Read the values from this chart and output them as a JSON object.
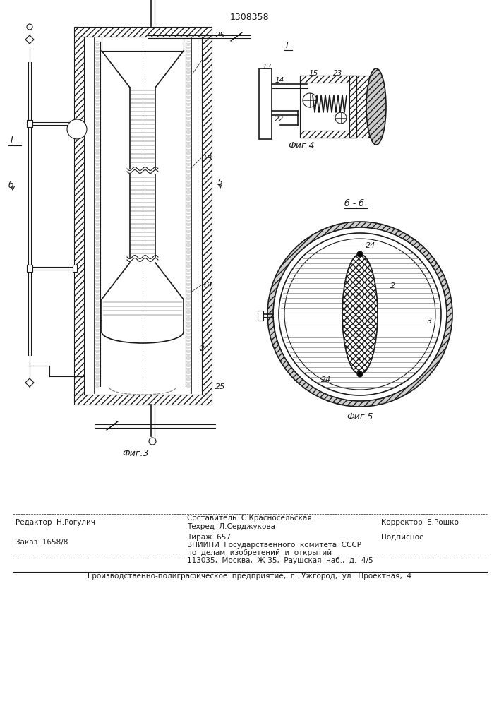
{
  "patent_number": "1308358",
  "background_color": "#ffffff",
  "line_color": "#1a1a1a",
  "fig3_label": "Фиг.3",
  "fig4_label": "Фиг.4",
  "fig5_label": "Фиг.5",
  "footer_editor": "Редактор  Н.Рогулич",
  "footer_composer": "Составитель  С.Красносельская",
  "footer_tech": "Техред  Л.Серджукова",
  "footer_corrector": "Корректор  Е.Рошко",
  "footer_order": "Заказ  1658/8",
  "footer_tirazh": "Тираж  657",
  "footer_podp": "Подписное",
  "footer_vniip1": "ВНИИПИ  Государственного  комитета  СССР",
  "footer_vniip2": "по  делам  изобретений  и  открытий",
  "footer_addr": "113035,  Москва,  Ж-35,  Раушская  наб.,  д.  4/5",
  "footer_bottom": "Гроизводственно-полиграфическое  предприятие,  г.  Ужгород,  ул.  Проектная,  4"
}
